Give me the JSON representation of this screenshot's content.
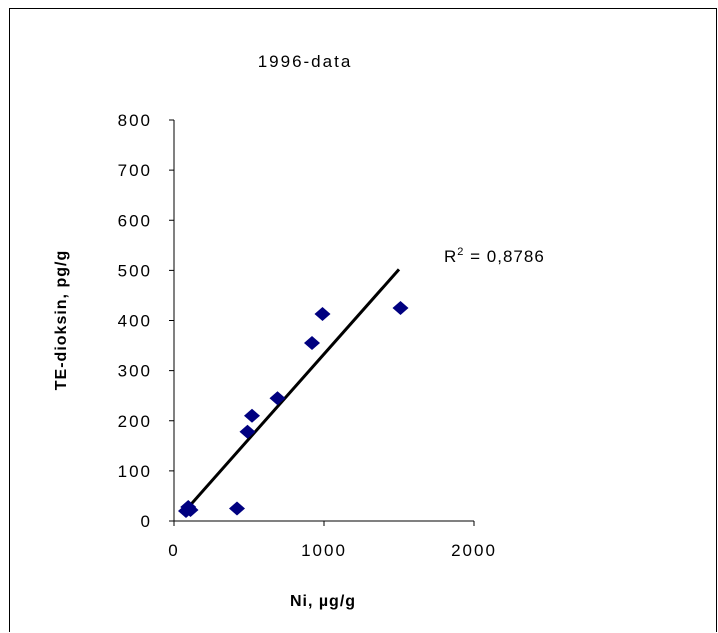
{
  "chart_data": {
    "type": "scatter",
    "title": "1996-data",
    "xlabel": "Ni, µg/g",
    "ylabel": "TE-dioksin, pg/g",
    "xlim": [
      0,
      2000
    ],
    "ylim": [
      0,
      800
    ],
    "xticks": [
      "0",
      "1000",
      "2000"
    ],
    "yticks": [
      "0",
      "100",
      "200",
      "300",
      "400",
      "500",
      "600",
      "700",
      "800"
    ],
    "points": [
      {
        "x": 80,
        "y": 20
      },
      {
        "x": 110,
        "y": 22
      },
      {
        "x": 95,
        "y": 28
      },
      {
        "x": 420,
        "y": 25
      },
      {
        "x": 490,
        "y": 178
      },
      {
        "x": 520,
        "y": 210
      },
      {
        "x": 690,
        "y": 245
      },
      {
        "x": 920,
        "y": 355
      },
      {
        "x": 990,
        "y": 413
      },
      {
        "x": 1510,
        "y": 425
      }
    ],
    "trendline": {
      "type": "linear",
      "from": {
        "x": 80,
        "y": 22
      },
      "to": {
        "x": 1500,
        "y": 502
      }
    },
    "annotation": {
      "r2_label": "R",
      "r2_sup": "2",
      "r2_value": " = 0,8786"
    },
    "marker_color": "#000080",
    "line_color": "#000000",
    "grid": false,
    "legend": "none"
  }
}
